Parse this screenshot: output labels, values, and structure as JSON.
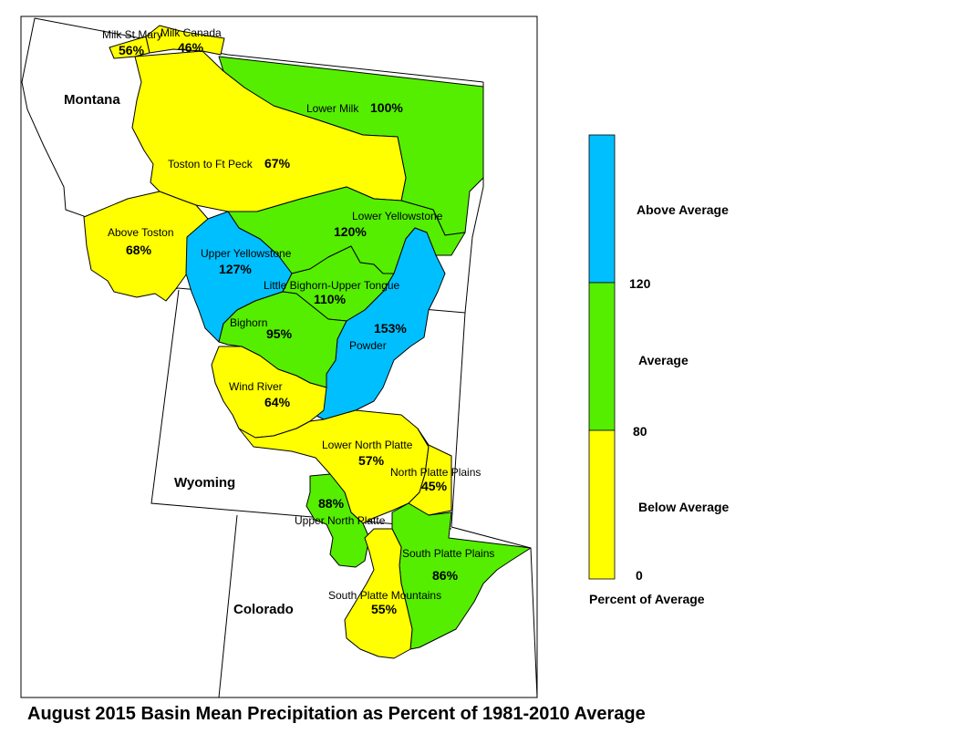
{
  "title": "August 2015 Basin Mean Precipitation as Percent of 1981-2010 Average",
  "colors": {
    "below": "#ffff00",
    "average": "#55ee00",
    "above": "#00bfff"
  },
  "states": [
    {
      "name": "Montana"
    },
    {
      "name": "Wyoming"
    },
    {
      "name": "Colorado"
    }
  ],
  "basins": [
    {
      "name": "Milk St Mary",
      "percent": "56%",
      "category": "below"
    },
    {
      "name": "Milk Canada",
      "percent": "46%",
      "category": "below"
    },
    {
      "name": "Lower Milk",
      "percent": "100%",
      "category": "average"
    },
    {
      "name": "Toston to Ft Peck",
      "percent": "67%",
      "category": "below"
    },
    {
      "name": "Above Toston",
      "percent": "68%",
      "category": "below"
    },
    {
      "name": "Lower Yellowstone",
      "percent": "120%",
      "category": "average"
    },
    {
      "name": "Upper Yellowstone",
      "percent": "127%",
      "category": "above"
    },
    {
      "name": "Little Bighorn-Upper Tongue",
      "percent": "110%",
      "category": "average"
    },
    {
      "name": "Powder",
      "percent": "153%",
      "category": "above"
    },
    {
      "name": "Bighorn",
      "percent": "95%",
      "category": "average"
    },
    {
      "name": "Wind River",
      "percent": "64%",
      "category": "below"
    },
    {
      "name": "Lower North Platte",
      "percent": "57%",
      "category": "below"
    },
    {
      "name": "North Platte Plains",
      "percent": "45%",
      "category": "below"
    },
    {
      "name": "Upper North Platte",
      "percent": "88%",
      "category": "average"
    },
    {
      "name": "South Platte Plains",
      "percent": "86%",
      "category": "average"
    },
    {
      "name": "South Platte Mountains",
      "percent": "55%",
      "category": "below"
    }
  ],
  "legend": {
    "items": [
      {
        "label": "Above Average",
        "category": "above"
      },
      {
        "label": "Average",
        "category": "average"
      },
      {
        "label": "Below Average",
        "category": "below"
      }
    ],
    "ticks": [
      "120",
      "80",
      "0"
    ],
    "caption": "Percent of Average"
  }
}
